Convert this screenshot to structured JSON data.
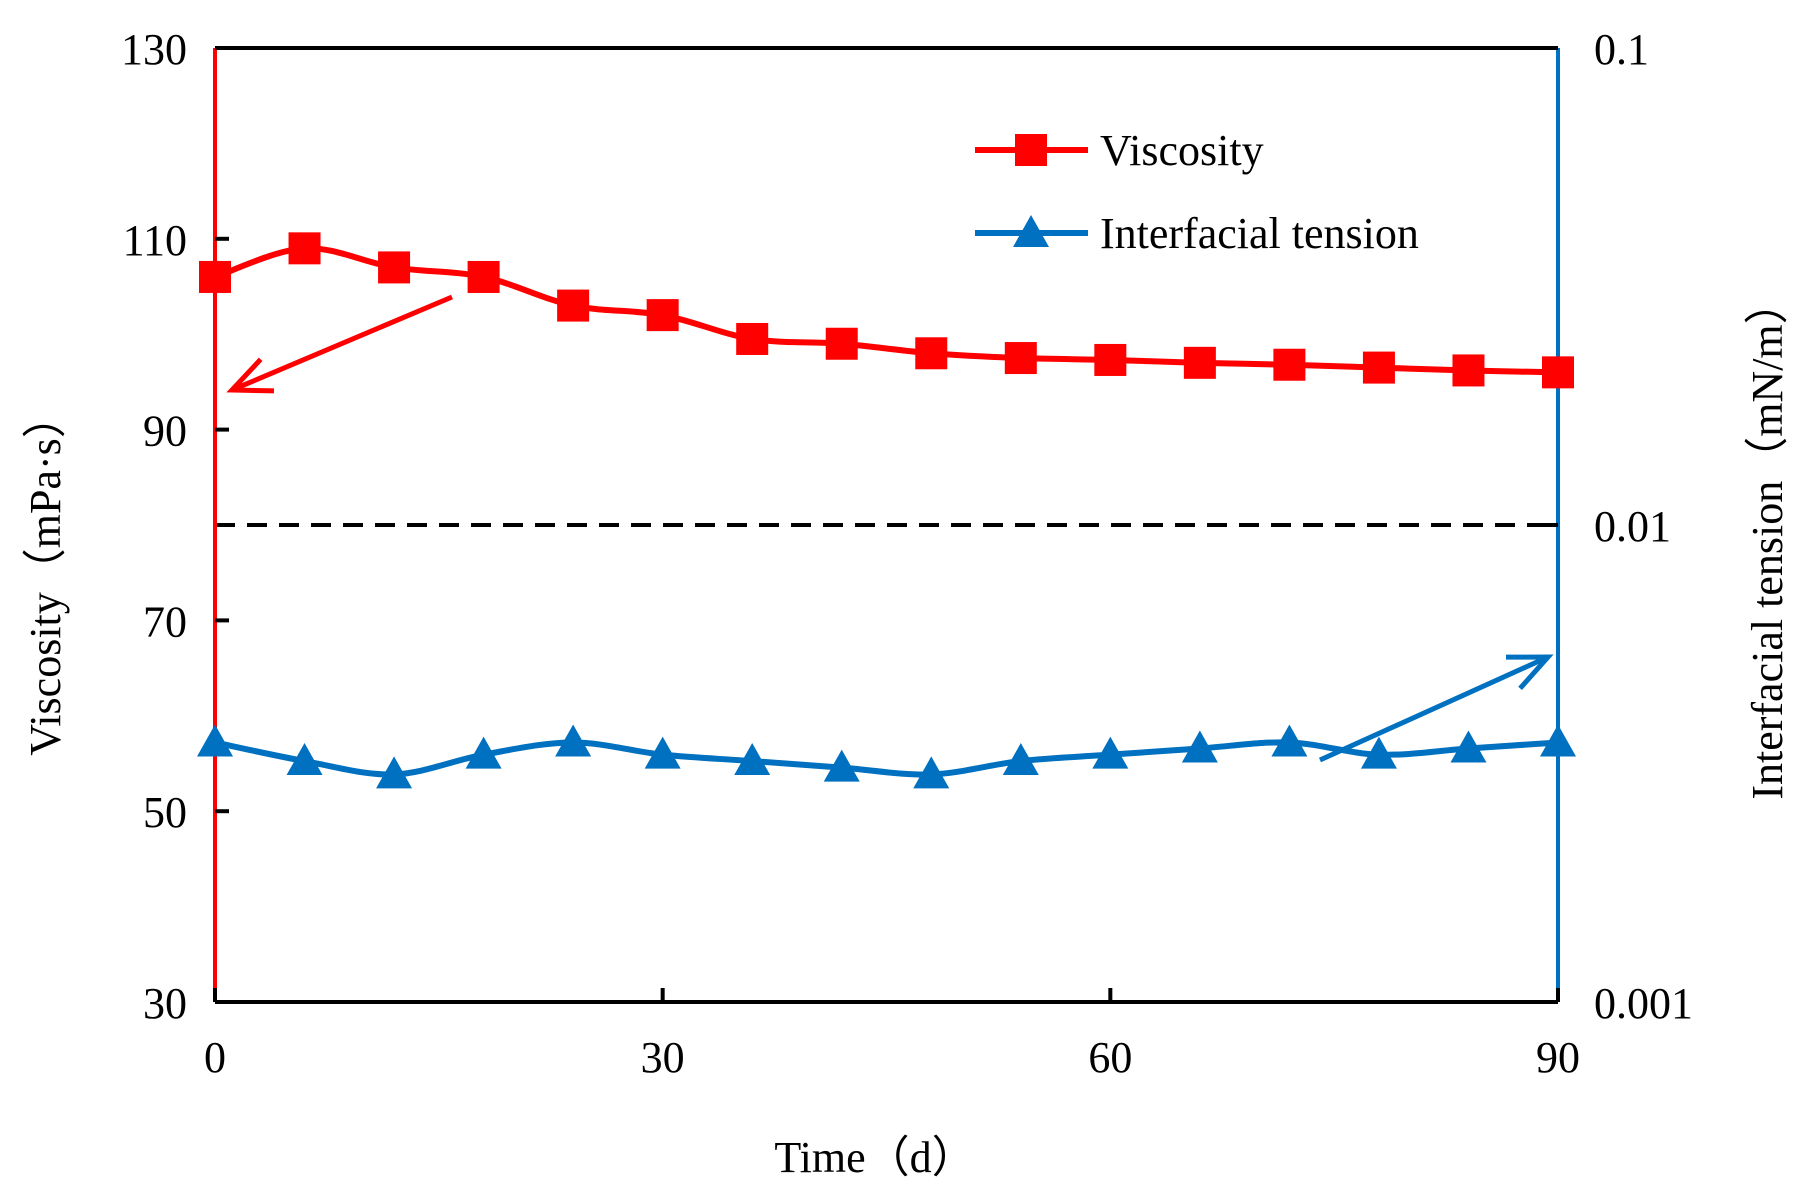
{
  "chart_data": {
    "type": "line",
    "title": "",
    "xlabel": "Time（d）",
    "ylabel_left": "Viscosity（mPa·s）",
    "ylabel_right": "Interfacial tension（mN/m）",
    "xlim": [
      0,
      90
    ],
    "ylim_left": [
      30,
      130
    ],
    "ylim_right": [
      0.001,
      0.1
    ],
    "right_axis_scale": "log",
    "x_ticks": [
      "0",
      "30",
      "60",
      "90"
    ],
    "y_left_ticks": [
      "30",
      "50",
      "70",
      "90",
      "110",
      "130"
    ],
    "y_right_ticks": [
      "0.001",
      "0.01",
      "0.1"
    ],
    "reference_line": {
      "axis": "right",
      "value": 0.01,
      "style": "dashed"
    },
    "legend_position": "top-right",
    "x": [
      0,
      6,
      12,
      18,
      24,
      30,
      36,
      42,
      48,
      54,
      60,
      66,
      72,
      78,
      84,
      90
    ],
    "series": [
      {
        "name": "Viscosity",
        "axis": "left",
        "color": "#ff0000",
        "marker": "square",
        "values": [
          106,
          109,
          107,
          106,
          103,
          102,
          99.5,
          99,
          98,
          97.5,
          97.3,
          97,
          96.8,
          96.5,
          96.2,
          96
        ]
      },
      {
        "name": "Interfacial tension",
        "axis": "right",
        "color": "#0070c0",
        "marker": "triangle",
        "values": [
          0.0035,
          0.0032,
          0.003,
          0.0033,
          0.0035,
          0.0033,
          0.0032,
          0.0031,
          0.003,
          0.0032,
          0.0033,
          0.0034,
          0.0035,
          0.0033,
          0.0034,
          0.0035
        ]
      }
    ],
    "annotations": [
      {
        "type": "arrow",
        "color": "#ff0000",
        "meaning": "points to left axis"
      },
      {
        "type": "arrow",
        "color": "#0070c0",
        "meaning": "points to right axis"
      }
    ]
  }
}
